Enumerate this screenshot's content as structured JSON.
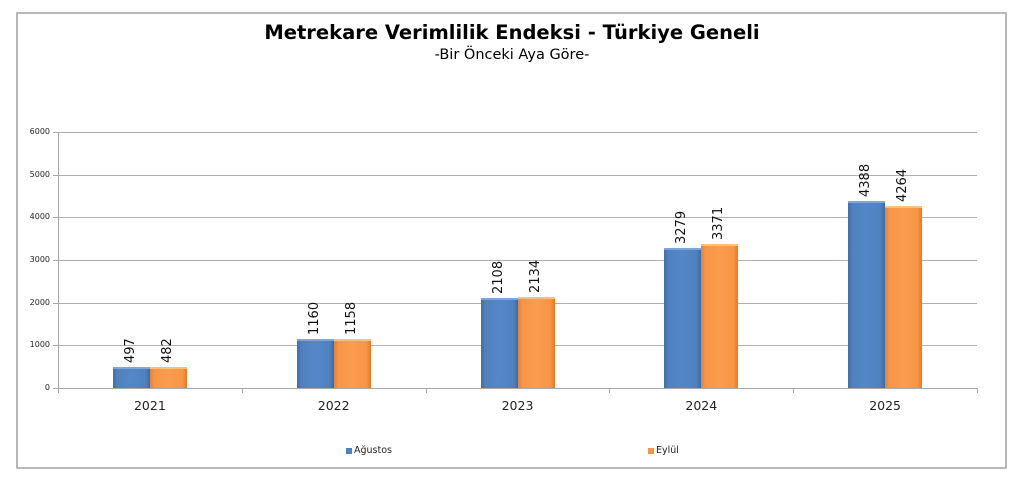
{
  "chart": {
    "title": "Metrekare Verimlilik Endeksi - Türkiye Geneli",
    "subtitle": "-Bir Önceki Aya Göre-"
  },
  "colors": {
    "agustos": "#4f81bd",
    "eylul": "#f79646"
  },
  "legend": {
    "items": [
      {
        "label": "Ağustos",
        "color": "#4f81bd"
      },
      {
        "label": "Eylül",
        "color": "#f79646"
      }
    ]
  },
  "axes": {
    "y_ticks": [
      "0",
      "1000",
      "2000",
      "3000",
      "4000",
      "5000",
      "6000"
    ],
    "x_ticks": [
      "2021",
      "2022",
      "2023",
      "2024",
      "2025"
    ]
  },
  "chart_data": {
    "type": "bar",
    "title": "Metrekare Verimlilik Endeksi - Türkiye Geneli",
    "subtitle": "-Bir Önceki Aya Göre-",
    "categories": [
      "2021",
      "2022",
      "2023",
      "2024",
      "2025"
    ],
    "series": [
      {
        "name": "Ağustos",
        "color": "#4f81bd",
        "values": [
          497,
          1160,
          2108,
          3279,
          4388
        ]
      },
      {
        "name": "Eylül",
        "color": "#f79646",
        "values": [
          482,
          1158,
          2134,
          3371,
          4264
        ]
      }
    ],
    "xlabel": "",
    "ylabel": "",
    "ylim": [
      0,
      6000
    ],
    "y_ticks": [
      0,
      1000,
      2000,
      3000,
      4000,
      5000,
      6000
    ],
    "grid": true,
    "legend_position": "bottom",
    "data_labels": true
  }
}
